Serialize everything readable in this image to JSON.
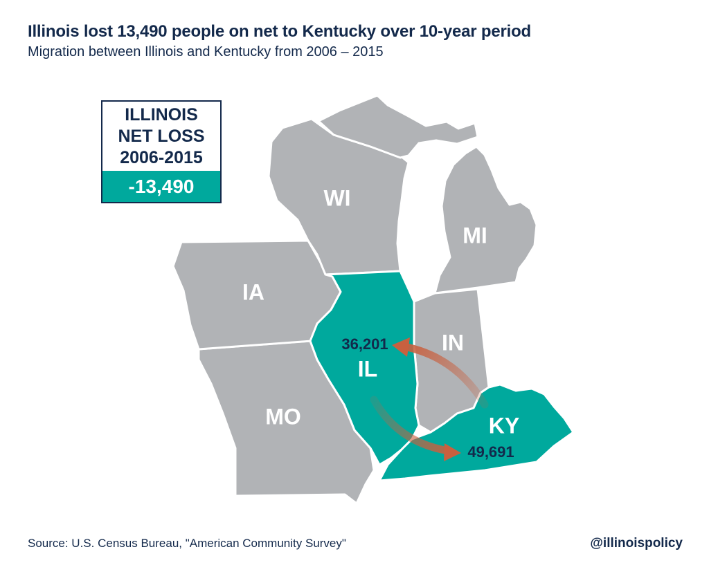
{
  "title": "Illinois lost 13,490 people on net to Kentucky over 10-year period",
  "subtitle": "Migration between Illinois and Kentucky from 2006 – 2015",
  "net_box": {
    "line1": "ILLINOIS",
    "line2": "NET LOSS",
    "line3": "2006-2015",
    "value": "-13,490"
  },
  "states": {
    "wi": "WI",
    "mi": "MI",
    "ia": "IA",
    "il": "IL",
    "in": "IN",
    "mo": "MO",
    "ky": "KY"
  },
  "flows": {
    "ky_to_il": "36,201",
    "il_to_ky": "49,691"
  },
  "source": "Source: U.S. Census Bureau, \"American Community Survey\"",
  "handle": "@illinoispolicy",
  "colors": {
    "navy": "#13294b",
    "teal": "#00a99d",
    "gray": "#b1b3b6",
    "arrow": "#c8603f"
  }
}
